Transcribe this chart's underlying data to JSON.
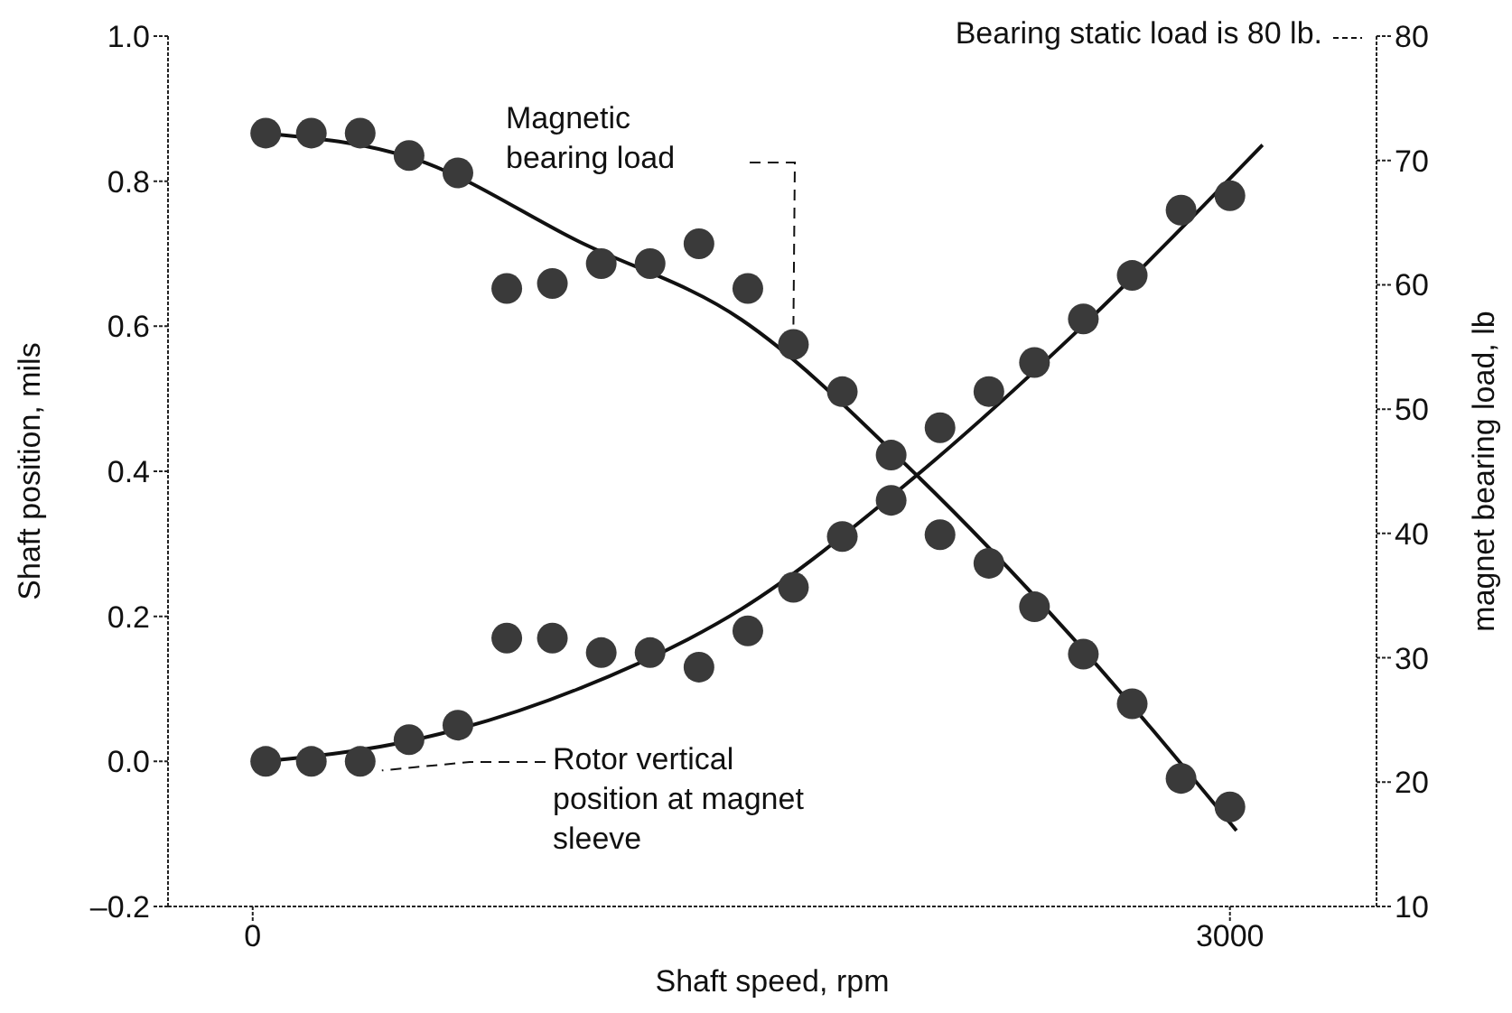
{
  "chart_data": {
    "type": "scatter",
    "xlabel": "Shaft speed, rpm",
    "ylabel": "Shaft position, mils",
    "y2label": "magnet bearing load, lb",
    "annotations": [
      "Bearing static load is 80 lb."
    ],
    "xlim": [
      -260,
      3450
    ],
    "xticks": [
      0,
      3000
    ],
    "ylim": [
      -0.2,
      1.0
    ],
    "yticks": [
      {
        "value": -0.2,
        "label": "–0.2"
      },
      {
        "value": 0,
        "label": "0.0"
      },
      0.2,
      0.4,
      0.6,
      0.8,
      {
        "value": 1.0,
        "label": "1.0"
      }
    ],
    "y2lim": [
      10,
      80
    ],
    "y2ticks": [
      10,
      20,
      30,
      40,
      50,
      60,
      70,
      80
    ],
    "grid": false,
    "legend": false,
    "marker": "circle",
    "x": [
      40,
      180,
      330,
      480,
      630,
      780,
      920,
      1070,
      1220,
      1370,
      1520,
      1660,
      1810,
      1960,
      2110,
      2260,
      2400,
      2550,
      2700,
      2850,
      3000
    ],
    "series": [
      {
        "name": "Magnetic bearing load",
        "axis": "y2",
        "color": "#3a3a3a",
        "values": [
          72.2,
          72.2,
          72.2,
          70.4,
          69.0,
          59.7,
          60.1,
          61.7,
          61.7,
          63.3,
          59.7,
          55.2,
          51.4,
          46.3,
          39.9,
          37.6,
          34.1,
          30.3,
          26.3,
          20.3,
          18.0
        ]
      },
      {
        "name": "Rotor vertical position at magnet sleeve",
        "color": "#3a3a3a",
        "values": [
          0.0,
          0.0,
          0.0,
          0.03,
          0.05,
          0.17,
          0.17,
          0.15,
          0.15,
          0.13,
          0.18,
          0.24,
          0.31,
          0.36,
          0.46,
          0.51,
          0.55,
          0.61,
          0.67,
          0.76,
          0.78
        ]
      },
      {
        "type": "line",
        "axis": "y2",
        "color": "#111111",
        "marker": "none",
        "x": [
          30,
          500,
          1000,
          1500,
          2030,
          2500,
          3020
        ],
        "values": [
          72.2,
          70.1,
          63.5,
          57.2,
          44.9,
          32.1,
          16.1
        ]
      },
      {
        "type": "line",
        "color": "#111111",
        "marker": "none",
        "x": [
          30,
          500,
          1000,
          1500,
          2000,
          2500,
          3100
        ],
        "values": [
          0.0,
          0.03,
          0.1,
          0.21,
          0.38,
          0.58,
          0.85
        ]
      }
    ]
  }
}
